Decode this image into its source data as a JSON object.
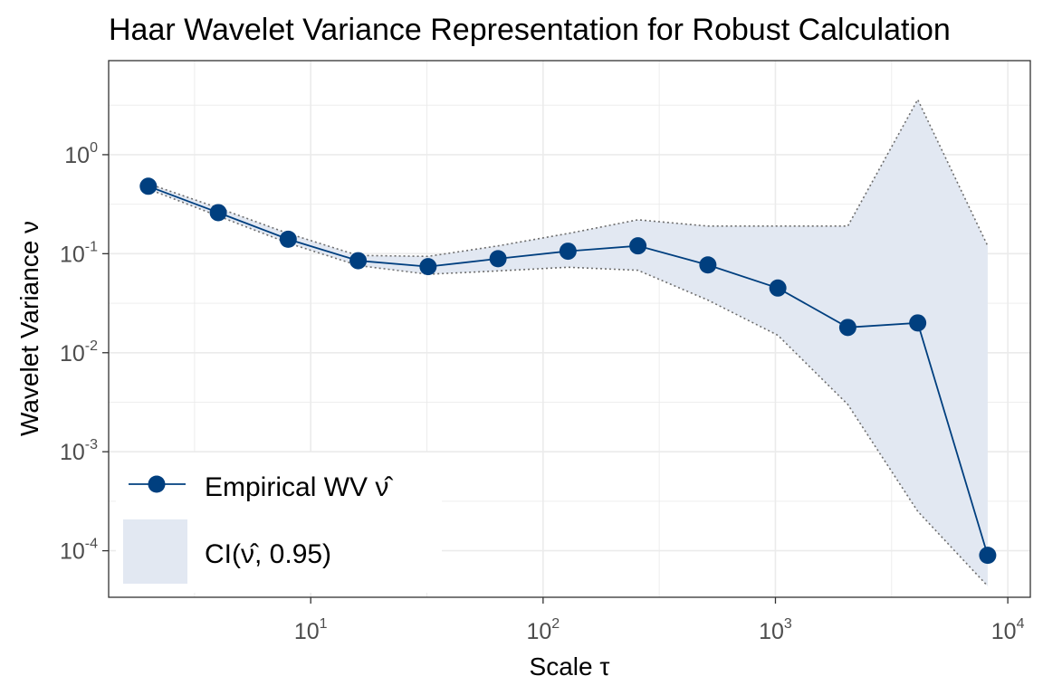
{
  "chart_data": {
    "type": "line",
    "title": "Haar Wavelet Variance Representation for Robust Calculation",
    "xlabel": "Scale τ",
    "ylabel": "Wavelet Variance ν",
    "x_scale": "log10",
    "y_scale": "log10",
    "xlim": [
      1.35,
      12500
    ],
    "ylim": [
      3.39e-05,
      8.91
    ],
    "x_ticks": [
      {
        "value": 10,
        "base": "10",
        "exp": "1"
      },
      {
        "value": 100,
        "base": "10",
        "exp": "2"
      },
      {
        "value": 1000,
        "base": "10",
        "exp": "3"
      },
      {
        "value": 10000,
        "base": "10",
        "exp": "4"
      }
    ],
    "y_ticks": [
      {
        "value": 0.0001,
        "base": "10",
        "exp": "-4"
      },
      {
        "value": 0.001,
        "base": "10",
        "exp": "-3"
      },
      {
        "value": 0.01,
        "base": "10",
        "exp": "-2"
      },
      {
        "value": 0.1,
        "base": "10",
        "exp": "-1"
      },
      {
        "value": 1,
        "base": "10",
        "exp": "0"
      }
    ],
    "grid": true,
    "legend_position": "bottom-left",
    "x": [
      2,
      4,
      8,
      16,
      32,
      64,
      128,
      256,
      512,
      1024,
      2048,
      4096,
      8192
    ],
    "series": [
      {
        "name": "Empirical WV ν̂",
        "kind": "line+points",
        "color": "#003f7f",
        "values": [
          0.48,
          0.26,
          0.14,
          0.085,
          0.074,
          0.089,
          0.106,
          0.12,
          0.077,
          0.045,
          0.018,
          0.02,
          9e-05
        ]
      },
      {
        "name": "CI(ν̂, 0.95)",
        "kind": "ribbon",
        "color": "#e2e8f2",
        "lower": [
          0.45,
          0.24,
          0.128,
          0.076,
          0.062,
          0.067,
          0.073,
          0.068,
          0.034,
          0.015,
          0.003,
          0.00025,
          4.4e-05
        ],
        "upper": [
          0.51,
          0.29,
          0.16,
          0.096,
          0.094,
          0.12,
          0.16,
          0.22,
          0.19,
          0.19,
          0.19,
          3.6,
          0.12
        ]
      }
    ]
  },
  "legend": {
    "wv_label": "Empirical WV ",
    "wv_symbol": "ν̂",
    "ci_label": "CI(",
    "ci_symbol": "ν̂",
    "ci_suffix": ", 0.95)"
  },
  "colors": {
    "line": "#003f7f",
    "ribbon": "#e2e8f2",
    "ribbon_edge": "#6e6e6e",
    "grid": "#ebebeb",
    "panel_border": "#333333"
  }
}
